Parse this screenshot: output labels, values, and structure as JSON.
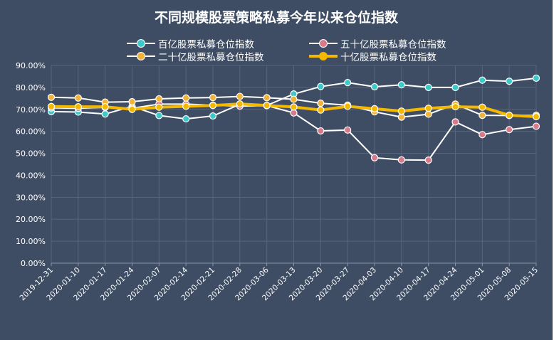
{
  "chart_data": {
    "type": "line",
    "title": "不同规模股票策略私募今年以来仓位指数",
    "categories": [
      "2019-12-31",
      "2020-01-10",
      "2020-01-17",
      "2020-01-24",
      "2020-02-07",
      "2020-02-14",
      "2020-02-21",
      "2020-02-28",
      "2020-03-06",
      "2020-03-13",
      "2020-03-20",
      "2020-03-27",
      "2020-04-03",
      "2020-04-10",
      "2020-04-17",
      "2020-04-24",
      "2020-05-01",
      "2020-05-08",
      "2020-05-15"
    ],
    "y_tick_labels": [
      "0.00%",
      "10.00%",
      "20.00%",
      "30.00%",
      "40.00%",
      "50.00%",
      "60.00%",
      "70.00%",
      "80.00%",
      "90.00%"
    ],
    "ylim": [
      0,
      90
    ],
    "grid": true,
    "legend_position": "top",
    "series": [
      {
        "name": "百亿股票私募仓位指数",
        "marker_color": "#3ec9c9",
        "line_color": "#ffffff",
        "line_width": 2,
        "values": [
          69.0,
          68.8,
          67.9,
          71.4,
          67.2,
          65.7,
          67.0,
          72.3,
          71.8,
          77.0,
          80.4,
          82.2,
          80.3,
          81.2,
          80.0,
          80.0,
          83.3,
          82.8,
          84.2
        ]
      },
      {
        "name": "五十亿股票私募仓位指数",
        "marker_color": "#d87a8a",
        "line_color": "#ffffff",
        "line_width": 2,
        "values": [
          70.7,
          70.5,
          70.9,
          70.5,
          72.4,
          72.4,
          71.9,
          71.5,
          71.7,
          68.4,
          60.2,
          60.6,
          48.0,
          47.0,
          46.9,
          64.3,
          58.5,
          60.8,
          62.3
        ]
      },
      {
        "name": "二十亿股票私募仓位指数",
        "marker_color": "#f0b43c",
        "line_color": "#ffffff",
        "line_width": 2,
        "values": [
          75.5,
          75.2,
          73.3,
          73.5,
          74.8,
          75.2,
          75.4,
          75.9,
          75.3,
          74.6,
          72.8,
          71.9,
          68.9,
          66.5,
          67.8,
          72.4,
          67.3,
          67.2,
          67.3
        ]
      },
      {
        "name": "十亿股票私募仓位指数",
        "marker_color": "#f5b800",
        "line_color": "#f5b800",
        "line_width": 4,
        "values": [
          71.3,
          71.2,
          71.2,
          70.0,
          71.0,
          71.4,
          71.8,
          72.5,
          71.8,
          71.1,
          69.7,
          71.4,
          70.3,
          69.2,
          70.5,
          71.2,
          71.0,
          67.3,
          66.7
        ]
      }
    ]
  }
}
